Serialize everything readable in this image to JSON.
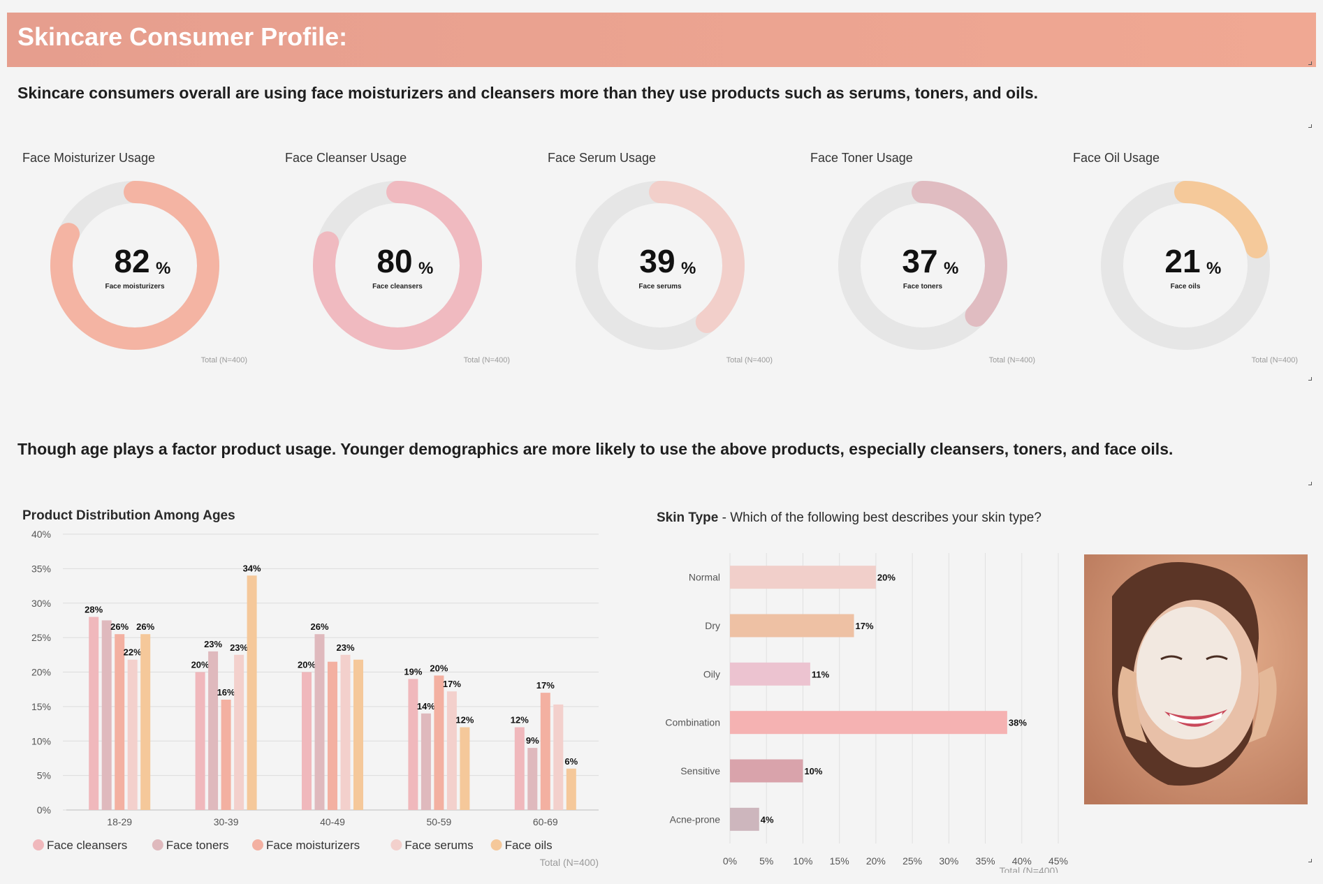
{
  "header": {
    "title": "Skincare Consumer Profile:"
  },
  "headline_1": "Skincare consumers overall are using face moisturizers and cleansers more than they use products such as serums, toners, and oils.",
  "headline_2": "Though age plays a factor product usage. Younger demographics are more likely to use the above products, especially cleansers, toners, and face oils.",
  "donuts": [
    {
      "title": "Face Moisturizer Usage",
      "value": 82,
      "value_text": "82",
      "unit": "%",
      "label": "Face moisturizers",
      "total": "Total (N=400)",
      "color": "#f4b4a3"
    },
    {
      "title": "Face Cleanser Usage",
      "value": 80,
      "value_text": "80",
      "unit": "%",
      "label": "Face cleansers",
      "total": "Total (N=400)",
      "color": "#f0bac0"
    },
    {
      "title": "Face Serum Usage",
      "value": 39,
      "value_text": "39",
      "unit": "%",
      "label": "Face serums",
      "total": "Total (N=400)",
      "color": "#f2cfca"
    },
    {
      "title": "Face Toner Usage",
      "value": 37,
      "value_text": "37",
      "unit": "%",
      "label": "Face toners",
      "total": "Total (N=400)",
      "color": "#e0bcc1"
    },
    {
      "title": "Face Oil Usage",
      "value": 21,
      "value_text": "21",
      "unit": "%",
      "label": "Face oils",
      "total": "Total (N=400)",
      "color": "#f5c99a"
    }
  ],
  "age_chart": {
    "title": "Product Distribution Among Ages",
    "total": "Total (N=400)"
  },
  "skin_chart": {
    "title_bold": "Skin Type",
    "title_rest": " - Which of the following best describes your skin type?",
    "total": "Total (N=400)"
  },
  "chart_data": [
    {
      "type": "bar",
      "title": "Product Distribution Among Ages",
      "categories": [
        "18-29",
        "30-39",
        "40-49",
        "50-59",
        "60-69"
      ],
      "ylim": [
        0,
        40
      ],
      "yticks": [
        0,
        5,
        10,
        15,
        20,
        25,
        30,
        35,
        40
      ],
      "ytick_labels": [
        "0%",
        "5%",
        "10%",
        "15%",
        "20%",
        "25%",
        "30%",
        "35%",
        "40%"
      ],
      "series": [
        {
          "name": "Face cleansers",
          "color": "#f0b8bc",
          "values": [
            28,
            20,
            20,
            19,
            12
          ],
          "labels": [
            "28%",
            "20%",
            "20%",
            "19%",
            "12%"
          ]
        },
        {
          "name": "Face toners",
          "color": "#dfb9bd",
          "values": [
            27.5,
            23,
            25.5,
            14,
            9
          ],
          "labels": [
            "",
            "23%",
            "26%",
            "14%",
            "9%"
          ]
        },
        {
          "name": "Face moisturizers",
          "color": "#f3b0a1",
          "values": [
            25.5,
            16,
            21.5,
            19.5,
            17
          ],
          "labels": [
            "26%",
            "16%",
            "",
            "20%",
            "17%"
          ]
        },
        {
          "name": "Face serums",
          "color": "#f3d0cc",
          "values": [
            21.8,
            22.5,
            22.5,
            17.2,
            15.3
          ],
          "labels": [
            "22%",
            "23%",
            "23%",
            "17%",
            ""
          ]
        },
        {
          "name": "Face oils",
          "color": "#f5c89a",
          "values": [
            25.5,
            34,
            21.8,
            12,
            6
          ],
          "labels": [
            "26%",
            "34%",
            "",
            "12%",
            "6%"
          ]
        }
      ],
      "legend": "bottom"
    },
    {
      "type": "bar",
      "orientation": "horizontal",
      "title": "Skin Type - Which of the following best describes your skin type?",
      "categories": [
        "Normal",
        "Dry",
        "Oily",
        "Combination",
        "Sensitive",
        "Acne-prone"
      ],
      "values": [
        20,
        17,
        11,
        38,
        10,
        4
      ],
      "labels": [
        "20%",
        "17%",
        "11%",
        "38%",
        "10%",
        "4%"
      ],
      "colors": [
        "#f1cfca",
        "#eec1a4",
        "#ecc3d0",
        "#f5b2b2",
        "#d9a3ab",
        "#cdb6bd"
      ],
      "xlim": [
        0,
        45
      ],
      "xticks": [
        0,
        5,
        10,
        15,
        20,
        25,
        30,
        35,
        40,
        45
      ],
      "xtick_labels": [
        "0%",
        "5%",
        "10%",
        "15%",
        "20%",
        "25%",
        "30%",
        "35%",
        "40%",
        "45%"
      ]
    }
  ]
}
